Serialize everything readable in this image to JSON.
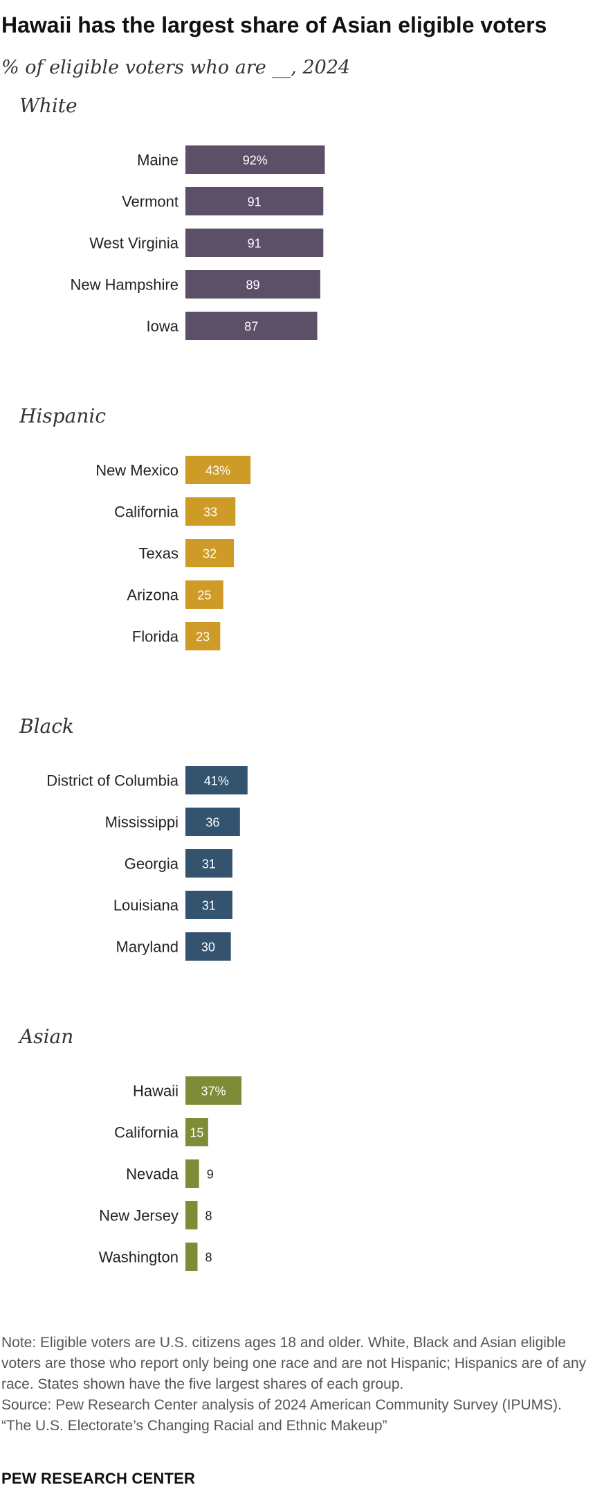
{
  "title": "Hawaii has the largest share of Asian eligible voters",
  "subtitle": "% of eligible voters who are __, 2024",
  "chart_data": {
    "type": "bar",
    "orientation": "horizontal",
    "xlim": [
      0,
      100
    ],
    "panels": [
      {
        "name": "White",
        "color": "#5c5069",
        "categories": [
          "Maine",
          "Vermont",
          "West Virginia",
          "New Hampshire",
          "Iowa"
        ],
        "values": [
          92,
          91,
          91,
          89,
          87
        ],
        "labels": [
          "92%",
          "91",
          "91",
          "89",
          "87"
        ]
      },
      {
        "name": "Hispanic",
        "color": "#cf9b27",
        "categories": [
          "New Mexico",
          "California",
          "Texas",
          "Arizona",
          "Florida"
        ],
        "values": [
          43,
          33,
          32,
          25,
          23
        ],
        "labels": [
          "43%",
          "33",
          "32",
          "25",
          "23"
        ]
      },
      {
        "name": "Black",
        "color": "#33536f",
        "categories": [
          "District of Columbia",
          "Mississippi",
          "Georgia",
          "Louisiana",
          "Maryland"
        ],
        "values": [
          41,
          36,
          31,
          31,
          30
        ],
        "labels": [
          "41%",
          "36",
          "31",
          "31",
          "30"
        ]
      },
      {
        "name": "Asian",
        "color": "#7d8c36",
        "categories": [
          "Hawaii",
          "California",
          "Nevada",
          "New Jersey",
          "Washington"
        ],
        "values": [
          37,
          15,
          9,
          8,
          8
        ],
        "labels": [
          "37%",
          "15",
          "9",
          "8",
          "8"
        ]
      }
    ]
  },
  "notes": {
    "note": "Note: Eligible voters are U.S. citizens ages 18 and older. White, Black and Asian eligible voters are those who report only being one race and are not Hispanic; Hispanics are of any race. States shown have the five largest shares of each group.",
    "source": "Source: Pew Research Center analysis of 2024 American Community Survey (IPUMS).",
    "report": "“The U.S. Electorate’s Changing Racial and Ethnic Makeup”"
  },
  "brand": "PEW RESEARCH CENTER"
}
